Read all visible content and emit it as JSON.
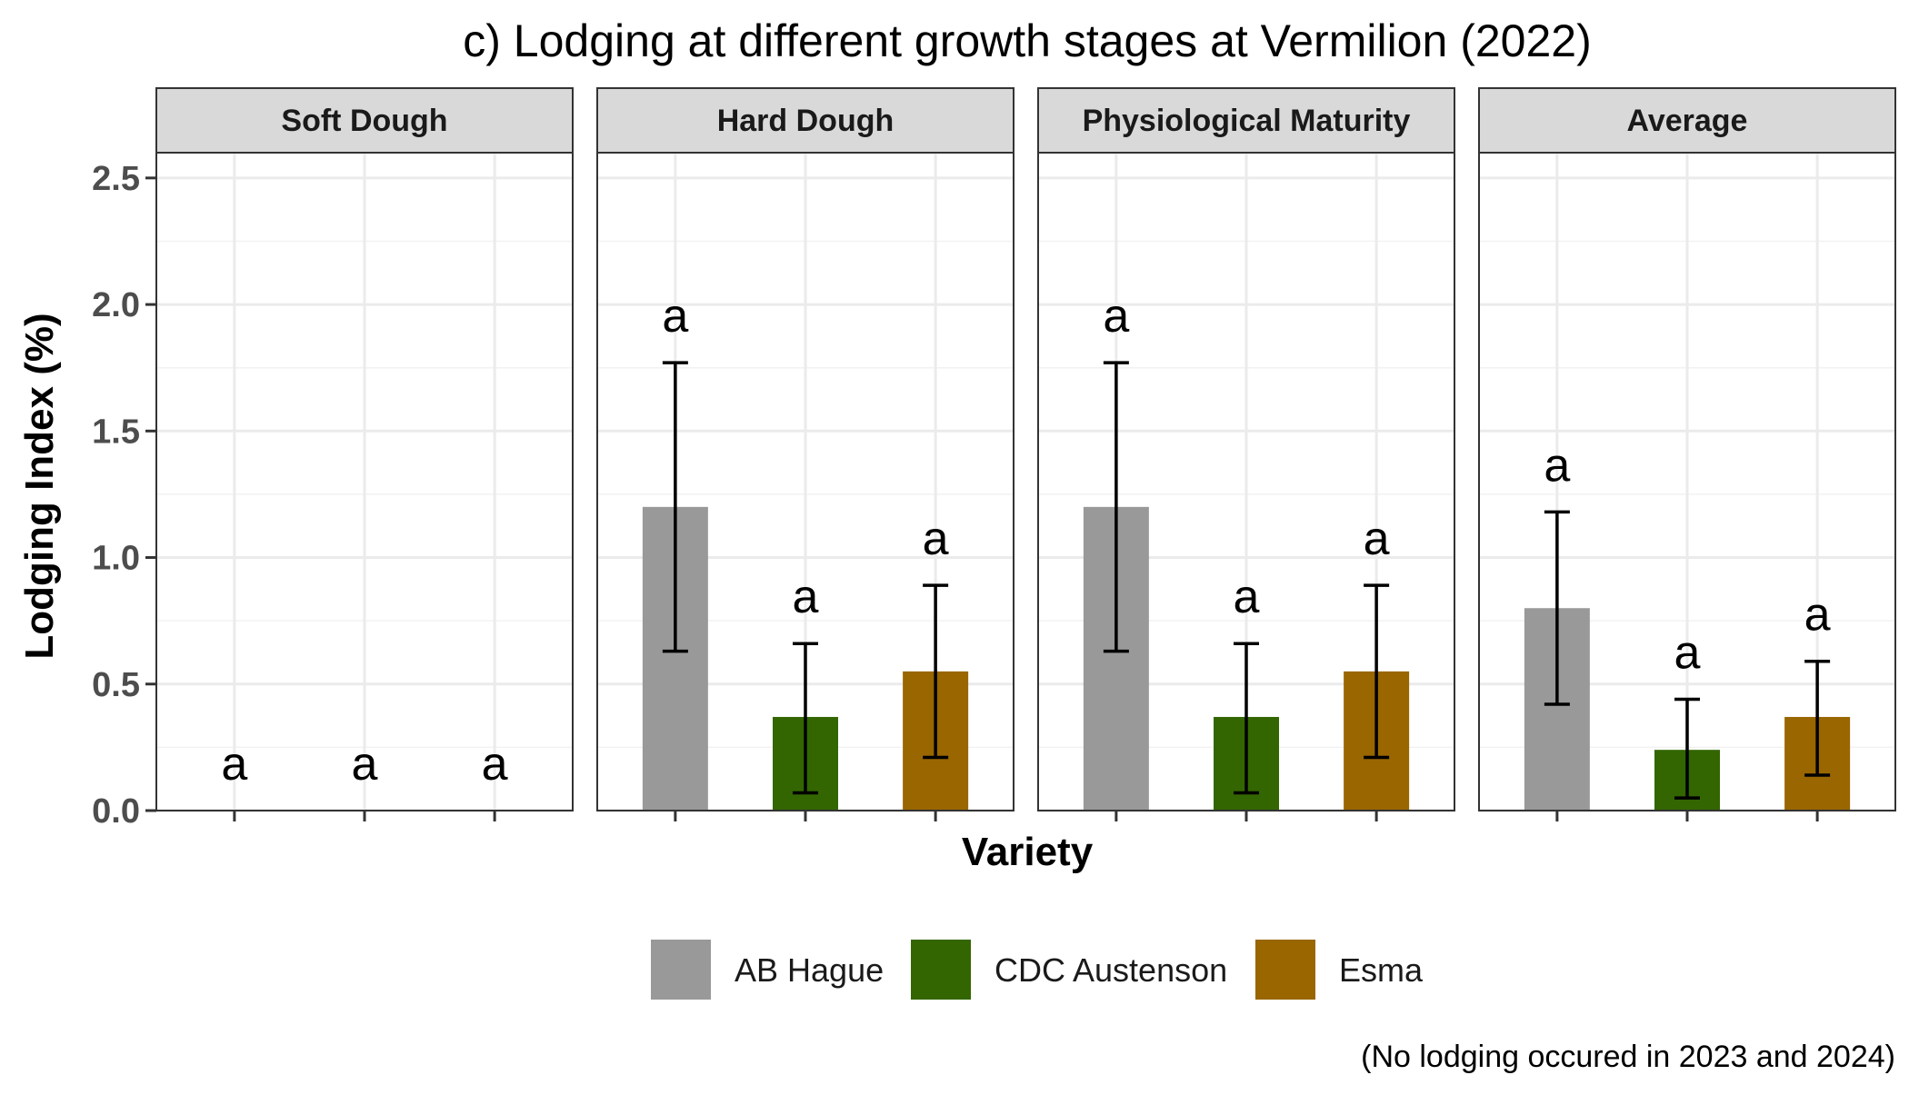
{
  "chart_data": {
    "type": "bar",
    "title": "c) Lodging at different growth stages at Vermilion (2022)",
    "xlabel": "Variety",
    "ylabel": "Lodging Index (%)",
    "ylim": [
      0,
      2.6
    ],
    "yticks": [
      "0.0",
      "0.5",
      "1.0",
      "1.5",
      "2.0",
      "2.5"
    ],
    "ytick_values": [
      0,
      0.5,
      1.0,
      1.5,
      2.0,
      2.5
    ],
    "grid": true,
    "legend_position": "bottom",
    "categories": [
      "AB Hague",
      "CDC Austenson",
      "Esma"
    ],
    "colors": {
      "AB Hague": "#999999",
      "CDC Austenson": "#336600",
      "Esma": "#996600"
    },
    "panels": [
      {
        "name": "Soft Dough",
        "values": [
          0,
          0,
          0
        ],
        "err_low": [
          0,
          0,
          0
        ],
        "err_high": [
          0,
          0,
          0
        ],
        "letters": [
          "a",
          "a",
          "a"
        ]
      },
      {
        "name": "Hard Dough",
        "values": [
          1.2,
          0.37,
          0.55
        ],
        "err_low": [
          0.63,
          0.07,
          0.21
        ],
        "err_high": [
          1.77,
          0.66,
          0.89
        ],
        "letters": [
          "a",
          "a",
          "a"
        ]
      },
      {
        "name": "Physiological Maturity",
        "values": [
          1.2,
          0.37,
          0.55
        ],
        "err_low": [
          0.63,
          0.07,
          0.21
        ],
        "err_high": [
          1.77,
          0.66,
          0.89
        ],
        "letters": [
          "a",
          "a",
          "a"
        ]
      },
      {
        "name": "Average",
        "values": [
          0.8,
          0.24,
          0.37
        ],
        "err_low": [
          0.42,
          0.05,
          0.14
        ],
        "err_high": [
          1.18,
          0.44,
          0.59
        ],
        "letters": [
          "a",
          "a",
          "a"
        ]
      }
    ],
    "legend": [
      "AB Hague",
      "CDC Austenson",
      "Esma"
    ],
    "note": "(No lodging occured in 2023 and 2024)"
  }
}
